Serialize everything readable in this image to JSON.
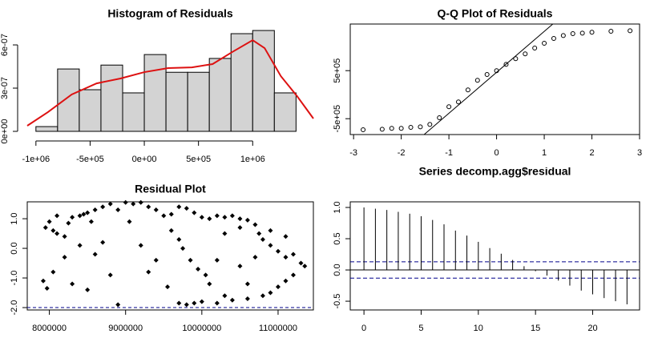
{
  "chart_data": [
    {
      "type": "histogram",
      "title": "Histogram of Residuals",
      "bins": [
        -1000000,
        -800000,
        -600000,
        -400000,
        -200000,
        0,
        200000,
        400000,
        600000,
        800000,
        1000000,
        1200000,
        1400000
      ],
      "values": [
        3.3e-08,
        4.33e-07,
        2.89e-07,
        4.6e-07,
        2.67e-07,
        5.33e-07,
        4.1e-07,
        4.1e-07,
        5.06e-07,
        6.78e-07,
        7e-07,
        2.67e-07
      ],
      "color": "#d3d3d3",
      "density": {
        "color": "#dd1111",
        "x": [
          -1080000,
          -890000,
          -670000,
          -440000,
          -220000,
          0,
          220000,
          440000,
          630000,
          810000,
          1000000,
          1110000,
          1260000,
          1410000,
          1560000
        ],
        "y": [
          3.9e-08,
          1.33e-07,
          2.56e-07,
          3.33e-07,
          3.67e-07,
          4.11e-07,
          4.39e-07,
          4.44e-07,
          4.67e-07,
          5.5e-07,
          6.33e-07,
          5.78e-07,
          3.83e-07,
          2.44e-07,
          8.9e-08
        ]
      },
      "xlim": [
        -1080000,
        1560000
      ],
      "xticks": [
        {
          "value": -1000000,
          "label": "-1e+06"
        },
        {
          "value": -500000,
          "label": "-5e+05"
        },
        {
          "value": 0,
          "label": "0e+00"
        },
        {
          "value": 500000,
          "label": "5e+05"
        },
        {
          "value": 1000000,
          "label": "1e+06"
        }
      ],
      "ylim": [
        0,
        7.56e-07
      ],
      "yticks": [
        {
          "value": 0,
          "label": "0e+00"
        },
        {
          "value": 3e-07,
          "label": "3e-07"
        },
        {
          "value": 6e-07,
          "label": "6e-07"
        }
      ]
    },
    {
      "type": "qq",
      "title": "Q-Q Plot of Residuals",
      "x": [
        -2.8,
        -2.4,
        -2.2,
        -2.0,
        -1.8,
        -1.6,
        -1.4,
        -1.2,
        -1.0,
        -0.8,
        -0.6,
        -0.4,
        -0.2,
        0,
        0.2,
        0.4,
        0.6,
        0.8,
        1.0,
        1.2,
        1.4,
        1.6,
        1.8,
        2.0,
        2.4,
        2.8
      ],
      "values": [
        -730000,
        -720000,
        -700000,
        -700000,
        -680000,
        -670000,
        -620000,
        -480000,
        -250000,
        -150000,
        100000,
        300000,
        420000,
        500000,
        630000,
        750000,
        850000,
        970000,
        1070000,
        1170000,
        1230000,
        1270000,
        1280000,
        1300000,
        1320000,
        1330000
      ],
      "line": {
        "x": [
          -1.52,
          1.18
        ],
        "y": [
          -830000,
          1470000
        ]
      },
      "xlim": [
        -3.07,
        3.0
      ],
      "xticks": [
        -3,
        -2,
        -1,
        0,
        1,
        2,
        3
      ],
      "ylim": [
        -830000,
        1470000
      ],
      "yticks": [
        {
          "value": -500000,
          "label": "-5e+05"
        },
        {
          "value": 500000,
          "label": "5e+05"
        }
      ]
    },
    {
      "type": "scatter",
      "title": "Residual Plot",
      "x": [
        7920000,
        7970000,
        7950000,
        8000000,
        8050000,
        8100000,
        8200000,
        8250000,
        8300000,
        8400000,
        8450000,
        8500000,
        8550000,
        8600000,
        8700000,
        8800000,
        8900000,
        9000000,
        9100000,
        9200000,
        9300000,
        9400000,
        9500000,
        9600000,
        9700000,
        9800000,
        9900000,
        10000000,
        10100000,
        10200000,
        10300000,
        10400000,
        10500000,
        10600000,
        10700000,
        10750000,
        10800000,
        10900000,
        11000000,
        11100000,
        11200000,
        11300000,
        11350000,
        11200000,
        11100000,
        11000000,
        10900000,
        10800000,
        10600000,
        10400000,
        10300000,
        10200000,
        10000000,
        9900000,
        9800000,
        9700000,
        10100000,
        10050000,
        9950000,
        9850000,
        9750000,
        9700000,
        9600000,
        9550000,
        8900000,
        8500000,
        8300000,
        8800000,
        9300000,
        8700000,
        9200000,
        8200000,
        8400000,
        10500000,
        10700000,
        10300000,
        10500000,
        11100000,
        10900000,
        8100000,
        8600000,
        9400000,
        10200000,
        8050000,
        9050000,
        10600000
      ],
      "values": [
        -1.1,
        -1.35,
        0.7,
        0.9,
        0.6,
        0.5,
        0.4,
        0.85,
        1.05,
        1.1,
        1.15,
        1.2,
        0.9,
        1.3,
        1.4,
        1.5,
        1.3,
        1.55,
        1.5,
        1.55,
        1.4,
        1.3,
        1.1,
        1.15,
        1.4,
        1.35,
        1.2,
        1.05,
        1.0,
        1.1,
        1.05,
        1.1,
        1.0,
        0.95,
        0.8,
        0.5,
        0.3,
        0.1,
        -0.1,
        -0.3,
        -0.2,
        -0.5,
        -0.6,
        -0.9,
        -1.1,
        -1.3,
        -1.5,
        -1.6,
        -1.7,
        -1.75,
        -1.6,
        -1.85,
        -1.8,
        -1.85,
        -1.9,
        -1.85,
        -1.2,
        -0.9,
        -0.7,
        -0.4,
        0.0,
        0.3,
        0.6,
        -1.3,
        -1.9,
        -1.4,
        -1.2,
        -0.9,
        -0.8,
        0.2,
        0.1,
        -0.3,
        0.1,
        -0.6,
        -0.3,
        0.5,
        0.7,
        0.4,
        0.6,
        1.1,
        -0.2,
        -0.4,
        -0.4,
        -0.8,
        0.9,
        -1.2
      ],
      "hlines": [
        -2.0
      ],
      "hline_color": "#00008b",
      "xlim": [
        7710000,
        11463000
      ],
      "xticks": [
        8000000,
        9000000,
        10000000,
        11000000
      ],
      "ylim": [
        -2.08,
        1.57
      ],
      "yticks": [
        {
          "value": 1,
          "label": "1.0"
        },
        {
          "value": 0,
          "label": "0.0"
        },
        {
          "value": -1,
          "label": "-1.0"
        },
        {
          "value": -2,
          "label": "-2.0"
        }
      ]
    },
    {
      "type": "acf",
      "title": "Series  decomp.agg$residual",
      "x": [
        0,
        1,
        2,
        3,
        4,
        5,
        6,
        7,
        8,
        9,
        10,
        11,
        12,
        13,
        14,
        15,
        16,
        17,
        18,
        19,
        20,
        21,
        22,
        23
      ],
      "values": [
        1.0,
        0.98,
        0.96,
        0.93,
        0.9,
        0.86,
        0.8,
        0.73,
        0.63,
        0.55,
        0.45,
        0.35,
        0.26,
        0.16,
        0.06,
        -0.02,
        -0.09,
        -0.17,
        -0.25,
        -0.33,
        -0.39,
        -0.45,
        -0.5,
        -0.55
      ],
      "conf_lines": [
        0.13,
        -0.13
      ],
      "conf_color": "#00008b",
      "xlim": [
        -1.2,
        24.1
      ],
      "xticks": [
        0,
        5,
        10,
        15,
        20
      ],
      "ylim": [
        -0.64,
        1.09
      ],
      "yticks": [
        {
          "value": 1,
          "label": "1.0"
        },
        {
          "value": 0.5,
          "label": "0.5"
        },
        {
          "value": 0,
          "label": "0.0"
        },
        {
          "value": -0.5,
          "label": "-0.5"
        }
      ]
    }
  ]
}
